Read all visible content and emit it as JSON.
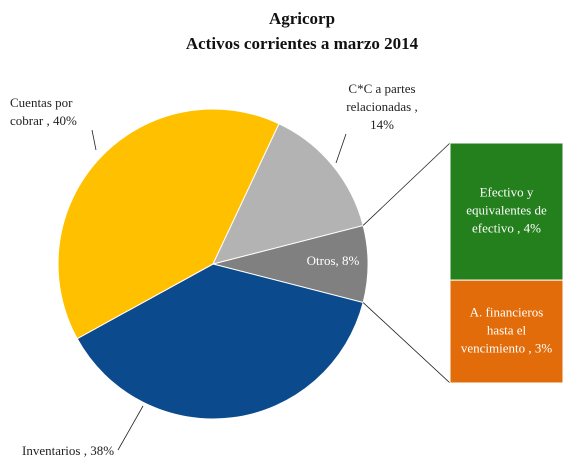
{
  "chart_data": {
    "type": "pie",
    "title": [
      "Agricorp",
      "Activos  corrientes a marzo 2014"
    ],
    "values": [
      8,
      38,
      40,
      14
    ],
    "colors": [
      "#808080",
      "#0b4a8c",
      "#ffc000",
      "#b3b3b3"
    ],
    "value_labels": [
      [
        "Otros, 8%"
      ],
      [
        "Inventarios , 38%"
      ],
      [
        "Cuentas por",
        "cobrar , 40%"
      ],
      [
        "C*C a partes",
        "relacionadas ,",
        "14%"
      ]
    ],
    "breakdown": {
      "type": "bar",
      "values": [
        4,
        3
      ],
      "colors": [
        "#23801d",
        "#e36c0a"
      ],
      "value_labels": [
        [
          "Efectivo  y",
          "equivalentes de",
          "efectivo , 4%"
        ],
        [
          "A. financieros",
          "hasta el",
          "vencimiento , 3%"
        ]
      ]
    }
  }
}
